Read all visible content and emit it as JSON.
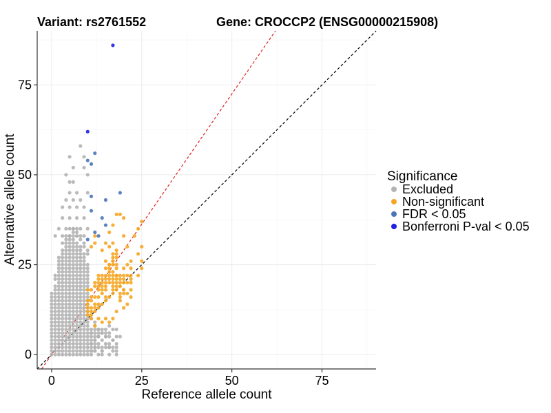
{
  "chart_data": {
    "type": "scatter",
    "title_left": "Variant: rs2761552",
    "title_right": "Gene: CROCCP2 (ENSG00000215908)",
    "xlabel": "Reference allele count",
    "ylabel": "Alternative allele count",
    "xlim": [
      -4,
      90
    ],
    "ylim": [
      -4,
      90
    ],
    "x_ticks": [
      0,
      25,
      50,
      75
    ],
    "y_ticks": [
      0,
      25,
      50,
      75
    ],
    "grid": true,
    "legend": {
      "title": "Significance",
      "position": "right",
      "entries": [
        {
          "key": "excluded",
          "label": "Excluded",
          "color": "#b3b3b3"
        },
        {
          "key": "nonsig",
          "label": "Non-significant",
          "color": "#f5a623"
        },
        {
          "key": "fdr",
          "label": "FDR < 0.05",
          "color": "#4a76b8"
        },
        {
          "key": "bonf",
          "label": "Bonferroni P-val < 0.05",
          "color": "#2020e0"
        }
      ]
    },
    "reference_lines": [
      {
        "slope": 1.45,
        "intercept": 0,
        "color": "#e02020",
        "dash": "4,3"
      },
      {
        "slope": 1.0,
        "intercept": 0,
        "color": "#000000",
        "dash": "4,3"
      }
    ],
    "series": [
      {
        "key": "bonf",
        "points": [
          [
            17,
            86
          ],
          [
            10,
            62
          ]
        ]
      },
      {
        "key": "fdr",
        "points": [
          [
            10,
            54
          ],
          [
            11,
            53
          ],
          [
            12,
            56
          ],
          [
            15,
            43
          ],
          [
            19,
            45
          ],
          [
            11,
            44
          ],
          [
            11,
            40
          ],
          [
            14,
            38
          ],
          [
            15,
            36
          ],
          [
            12,
            34
          ],
          [
            13,
            33
          ],
          [
            10,
            32
          ]
        ]
      },
      {
        "key": "nonsig_extra",
        "points": [
          [
            18,
            39
          ],
          [
            19,
            39
          ],
          [
            20,
            38
          ],
          [
            25,
            37
          ],
          [
            24,
            35
          ],
          [
            23,
            33
          ],
          [
            17,
            36
          ],
          [
            16,
            34
          ],
          [
            25,
            30
          ],
          [
            24,
            28
          ],
          [
            25,
            26
          ],
          [
            25,
            24
          ],
          [
            24,
            22
          ],
          [
            22,
            22
          ],
          [
            20,
            24
          ],
          [
            19,
            22
          ],
          [
            18,
            22
          ],
          [
            17,
            26
          ],
          [
            22,
            18
          ],
          [
            22,
            16
          ],
          [
            21,
            17
          ],
          [
            20,
            18
          ],
          [
            19,
            19
          ],
          [
            21,
            14
          ],
          [
            20,
            13
          ],
          [
            19,
            15
          ],
          [
            18,
            12
          ],
          [
            17,
            10
          ],
          [
            16,
            9
          ],
          [
            15,
            10
          ],
          [
            14,
            9
          ],
          [
            13,
            10
          ],
          [
            12,
            8
          ],
          [
            11,
            10
          ],
          [
            12,
            33
          ],
          [
            12,
            31
          ],
          [
            11,
            30
          ],
          [
            15,
            31
          ],
          [
            14,
            29
          ],
          [
            16,
            30
          ],
          [
            17,
            31
          ],
          [
            20,
            33
          ],
          [
            21,
            30
          ],
          [
            15,
            26
          ],
          [
            16,
            25
          ]
        ]
      },
      {
        "key": "excluded_extra",
        "points": [
          [
            5,
            55
          ],
          [
            6,
            52
          ],
          [
            4,
            50
          ],
          [
            5,
            48
          ],
          [
            6,
            48
          ],
          [
            8,
            58
          ],
          [
            9,
            55
          ],
          [
            9,
            52
          ],
          [
            10,
            50
          ],
          [
            5,
            45
          ],
          [
            7,
            45
          ],
          [
            10,
            45
          ],
          [
            4,
            43
          ],
          [
            6,
            43
          ],
          [
            8,
            43
          ],
          [
            3,
            41
          ],
          [
            5,
            41
          ],
          [
            7,
            41
          ],
          [
            9,
            41
          ],
          [
            3,
            38
          ],
          [
            5,
            38
          ],
          [
            7,
            38
          ],
          [
            9,
            38
          ],
          [
            2,
            35
          ],
          [
            4,
            35
          ],
          [
            6,
            35
          ],
          [
            8,
            35
          ],
          [
            10,
            35
          ],
          [
            1,
            33
          ],
          [
            3,
            33
          ],
          [
            5,
            33
          ],
          [
            7,
            33
          ],
          [
            9,
            33
          ],
          [
            12,
            1
          ],
          [
            13,
            2
          ],
          [
            14,
            1
          ],
          [
            15,
            3
          ],
          [
            16,
            2
          ],
          [
            17,
            1
          ],
          [
            12,
            4
          ],
          [
            13,
            5
          ],
          [
            15,
            5
          ],
          [
            16,
            6
          ],
          [
            17,
            4
          ],
          [
            18,
            7
          ],
          [
            18,
            5
          ],
          [
            14,
            6
          ],
          [
            11,
            6
          ],
          [
            12,
            7
          ],
          [
            13,
            3
          ],
          [
            17,
            7
          ],
          [
            16,
            8
          ],
          [
            15,
            7
          ],
          [
            14,
            4
          ],
          [
            11,
            3
          ],
          [
            11,
            1
          ],
          [
            12,
            2
          ],
          [
            13,
            7
          ],
          [
            18,
            3
          ],
          [
            19,
            5
          ]
        ]
      }
    ]
  }
}
